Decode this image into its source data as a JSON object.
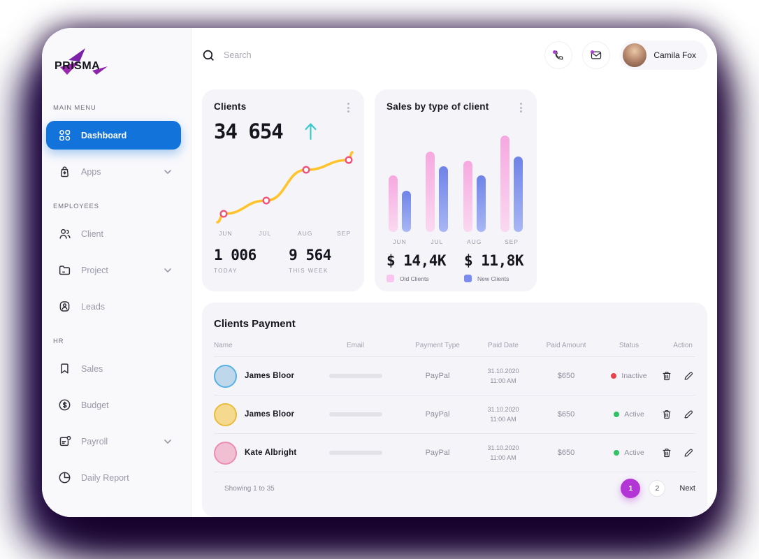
{
  "app": {
    "logo_text": "PRISMA",
    "colors": {
      "accent_blue": "#1273DB",
      "page_active": "#B335D6",
      "notification": "#B13AD8"
    }
  },
  "sidebar": {
    "sections": [
      {
        "label": "MAIN MENU",
        "items": [
          {
            "label": "Dashboard"
          },
          {
            "label": "Apps"
          }
        ]
      },
      {
        "label": "EMPLOYEES",
        "items": [
          {
            "label": "Client"
          },
          {
            "label": "Project"
          },
          {
            "label": "Leads"
          }
        ]
      },
      {
        "label": "HR",
        "items": [
          {
            "label": "Sales"
          },
          {
            "label": "Budget"
          },
          {
            "label": "Payroll"
          },
          {
            "label": "Daily Report"
          }
        ]
      }
    ]
  },
  "header": {
    "search_placeholder": "Search",
    "user_name": "Camila Fox"
  },
  "chart_data": [
    {
      "type": "line",
      "title": "Clients",
      "total_clients": "34 654",
      "trend": "up",
      "trend_color": "#35C8CD",
      "line_color": "#FFC32B",
      "marker_color": "#F2507B",
      "x": [
        "JUN",
        "JUL",
        "AUG",
        "SEP"
      ],
      "points": [
        [
          5,
          111
        ],
        [
          14,
          99
        ],
        [
          75,
          80
        ],
        [
          132,
          36
        ],
        [
          193,
          22
        ],
        [
          198,
          11
        ]
      ],
      "marker_indices": [
        1,
        2,
        3,
        4
      ],
      "label_pos": [
        8.5,
        37,
        66,
        94
      ],
      "stats": [
        {
          "value": "1 006",
          "label": "TODAY"
        },
        {
          "value": "9 564",
          "label": "THIS WEEK"
        }
      ]
    },
    {
      "type": "bar",
      "title": "Sales by type of client",
      "categories": [
        "JUN",
        "JUL",
        "AUG",
        "SEP"
      ],
      "ylim": [
        0,
        100
      ],
      "unit": "relative (% of tallest bar)",
      "series": [
        {
          "name": "Old Clients",
          "total": "$ 14,4K",
          "values": [
            59,
            83,
            74,
            100
          ],
          "color_top": "#F6A8DF",
          "color_bottom": "#FAD9F1",
          "legend_color": "#F8C6EE"
        },
        {
          "name": "New Clients",
          "total": "$ 11,8K",
          "values": [
            43,
            68,
            59,
            78
          ],
          "color_top": "#6F83E8",
          "color_bottom": "#A9B7F4",
          "legend_color": "#7B8BF0"
        }
      ]
    }
  ],
  "table": {
    "title": "Clients Payment",
    "columns": [
      "Name",
      "Email",
      "Payment Type",
      "Paid Date",
      "Paid Amount",
      "Status",
      "Action"
    ],
    "rows": [
      {
        "name": "James Bloor",
        "payment_type": "PayPal",
        "paid_date": "31.10.2020",
        "paid_time": "11:00 AM",
        "paid_amount": "$650",
        "status": "Inactive",
        "status_color": "#E8424D",
        "ring_color": "#57B1E3",
        "avatar_color": "#BFD7EA"
      },
      {
        "name": "James Bloor",
        "payment_type": "PayPal",
        "paid_date": "31.10.2020",
        "paid_time": "11:00 AM",
        "paid_amount": "$650",
        "status": "Active",
        "status_color": "#2FC163",
        "ring_color": "#E9BC3C",
        "avatar_color": "#F4D98F"
      },
      {
        "name": "Kate Albright",
        "payment_type": "PayPal",
        "paid_date": "31.10.2020",
        "paid_time": "11:00 AM",
        "paid_amount": "$650",
        "status": "Active",
        "status_color": "#2FC163",
        "ring_color": "#EC8CB0",
        "avatar_color": "#F1BFD2"
      }
    ],
    "footer": {
      "showing": "Showing 1 to 35",
      "pages": [
        "1",
        "2"
      ],
      "next_label": "Next"
    }
  }
}
